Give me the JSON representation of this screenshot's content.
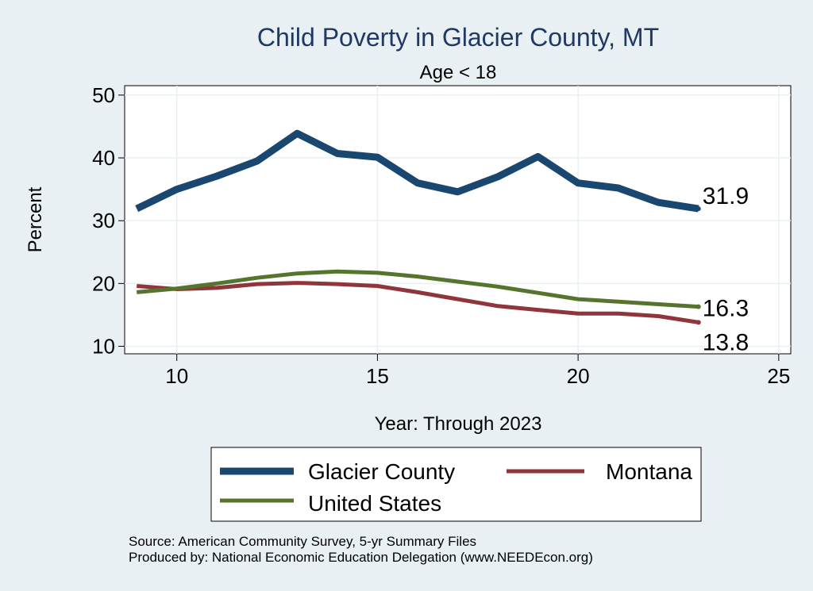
{
  "chart_data": {
    "type": "line",
    "title": "Child Poverty in Glacier County, MT",
    "subtitle": "Age < 18",
    "xlabel": "Year: Through 2023",
    "ylabel": "Percent",
    "xlim": [
      8.7,
      25.3
    ],
    "ylim": [
      8.8,
      51.5
    ],
    "xticks": [
      10,
      15,
      20,
      25
    ],
    "yticks": [
      10,
      20,
      30,
      40,
      50
    ],
    "grid": true,
    "legend_position": "bottom",
    "x": [
      9,
      10,
      11,
      12,
      13,
      14,
      15,
      16,
      17,
      18,
      19,
      20,
      21,
      22,
      23
    ],
    "series": [
      {
        "name": "Glacier County",
        "color": "#1a476f",
        "width": 9,
        "values": [
          31.9,
          35.0,
          37.1,
          39.5,
          43.9,
          40.7,
          40.1,
          36.0,
          34.6,
          37.0,
          40.2,
          36.0,
          35.2,
          32.9,
          31.9
        ],
        "end_label": "31.9"
      },
      {
        "name": "Montana",
        "color": "#90353b",
        "width": 5,
        "values": [
          19.6,
          19.1,
          19.3,
          19.9,
          20.1,
          19.9,
          19.6,
          18.6,
          17.5,
          16.4,
          15.8,
          15.2,
          15.2,
          14.8,
          13.8
        ],
        "end_label": "13.8"
      },
      {
        "name": "United States",
        "color": "#55752f",
        "width": 5,
        "values": [
          18.6,
          19.2,
          20.0,
          20.9,
          21.6,
          21.9,
          21.7,
          21.1,
          20.3,
          19.5,
          18.5,
          17.5,
          17.1,
          16.7,
          16.3
        ],
        "end_label": "16.3"
      }
    ]
  },
  "notes": {
    "source": "Source: American Community Survey, 5-yr Summary Files",
    "produced_by": "Produced by: National Economic Education Delegation (www.NEEDEcon.org)"
  }
}
